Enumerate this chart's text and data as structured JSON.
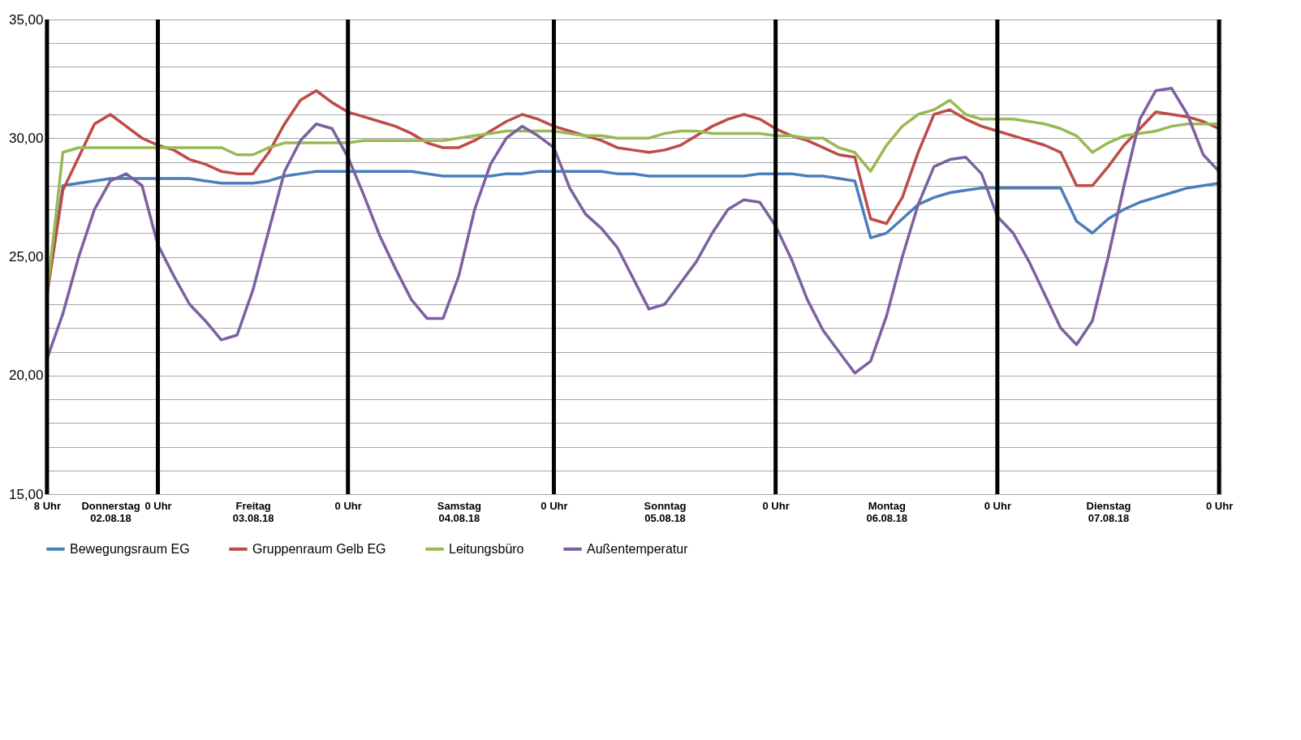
{
  "chart_data": {
    "type": "line",
    "ylim": [
      15,
      35
    ],
    "categories": [
      "8 Uhr",
      null,
      null,
      null,
      "Donnerstag\n02.08.18",
      null,
      null,
      "0 Uhr",
      null,
      null,
      null,
      null,
      null,
      "Freitag\n03.08.18",
      null,
      null,
      null,
      null,
      null,
      "0 Uhr",
      null,
      null,
      null,
      null,
      null,
      null,
      "Samstag\n04.08.18",
      null,
      null,
      null,
      null,
      null,
      "0 Uhr",
      null,
      null,
      null,
      null,
      null,
      null,
      "Sonntag\n05.08.18",
      null,
      null,
      null,
      null,
      null,
      null,
      "0 Uhr",
      null,
      null,
      null,
      null,
      null,
      null,
      "Montag\n06.08.18",
      null,
      null,
      null,
      null,
      null,
      null,
      "0 Uhr",
      null,
      null,
      null,
      null,
      null,
      null,
      "Dienstag\n07.08.18",
      null,
      null,
      null,
      null,
      null,
      null,
      "0 Uhr"
    ],
    "yticks": [
      {
        "value": 15,
        "label": "15,00"
      },
      {
        "value": 16,
        "label": null
      },
      {
        "value": 17,
        "label": null
      },
      {
        "value": 18,
        "label": null
      },
      {
        "value": 19,
        "label": null
      },
      {
        "value": 20,
        "label": "20,00"
      },
      {
        "value": 21,
        "label": null
      },
      {
        "value": 22,
        "label": null
      },
      {
        "value": 23,
        "label": null
      },
      {
        "value": 24,
        "label": null
      },
      {
        "value": 25,
        "label": "25,00"
      },
      {
        "value": 26,
        "label": null
      },
      {
        "value": 27,
        "label": null
      },
      {
        "value": 28,
        "label": null
      },
      {
        "value": 29,
        "label": null
      },
      {
        "value": 30,
        "label": "30,00"
      },
      {
        "value": 31,
        "label": null
      },
      {
        "value": 32,
        "label": null
      },
      {
        "value": 33,
        "label": null
      },
      {
        "value": 34,
        "label": null
      },
      {
        "value": 35,
        "label": "35,00"
      }
    ],
    "grid": true,
    "legend": "bottom",
    "line_style": "solid",
    "series": [
      {
        "name": "Bewegungsraum EG",
        "color": "#4a7ebb",
        "values": [
          23.4,
          28.0,
          28.1,
          28.2,
          28.3,
          28.3,
          28.3,
          28.3,
          28.3,
          28.3,
          28.2,
          28.1,
          28.1,
          28.1,
          28.2,
          28.4,
          28.5,
          28.6,
          28.6,
          28.6,
          28.6,
          28.6,
          28.6,
          28.6,
          28.5,
          28.4,
          28.4,
          28.4,
          28.4,
          28.5,
          28.5,
          28.6,
          28.6,
          28.6,
          28.6,
          28.6,
          28.5,
          28.5,
          28.4,
          28.4,
          28.4,
          28.4,
          28.4,
          28.4,
          28.4,
          28.5,
          28.5,
          28.5,
          28.4,
          28.4,
          28.3,
          28.2,
          25.8,
          26.0,
          26.6,
          27.2,
          27.5,
          27.7,
          27.8,
          27.9,
          27.9,
          27.9,
          27.9,
          27.9,
          27.9,
          26.5,
          26.0,
          26.6,
          27.0,
          27.3,
          27.5,
          27.7,
          27.9,
          28.0,
          28.1
        ]
      },
      {
        "name": "Gruppenraum Gelb EG",
        "color": "#be4b48",
        "values": [
          23.4,
          27.8,
          29.2,
          30.6,
          31.0,
          30.5,
          30.0,
          29.7,
          29.5,
          29.1,
          28.9,
          28.6,
          28.5,
          28.5,
          29.4,
          30.6,
          31.6,
          32.0,
          31.5,
          31.1,
          30.9,
          30.7,
          30.5,
          30.2,
          29.8,
          29.6,
          29.6,
          29.9,
          30.3,
          30.7,
          31.0,
          30.8,
          30.5,
          30.3,
          30.1,
          29.9,
          29.6,
          29.5,
          29.4,
          29.5,
          29.7,
          30.1,
          30.5,
          30.8,
          31.0,
          30.8,
          30.4,
          30.1,
          29.9,
          29.6,
          29.3,
          29.2,
          26.6,
          26.4,
          27.5,
          29.4,
          31.0,
          31.2,
          30.8,
          30.5,
          30.3,
          30.1,
          29.9,
          29.7,
          29.4,
          28.0,
          28.0,
          28.8,
          29.7,
          30.4,
          31.1,
          31.0,
          30.9,
          30.7,
          30.4
        ]
      },
      {
        "name": "Leitungsbüro",
        "color": "#98b954",
        "values": [
          23.4,
          29.4,
          29.6,
          29.6,
          29.6,
          29.6,
          29.6,
          29.6,
          29.6,
          29.6,
          29.6,
          29.6,
          29.3,
          29.3,
          29.6,
          29.8,
          29.8,
          29.8,
          29.8,
          29.8,
          29.9,
          29.9,
          29.9,
          29.9,
          29.9,
          29.9,
          30.0,
          30.1,
          30.2,
          30.3,
          30.3,
          30.3,
          30.3,
          30.2,
          30.1,
          30.1,
          30.0,
          30.0,
          30.0,
          30.2,
          30.3,
          30.3,
          30.2,
          30.2,
          30.2,
          30.2,
          30.1,
          30.1,
          30.0,
          30.0,
          29.6,
          29.4,
          28.6,
          29.7,
          30.5,
          31.0,
          31.2,
          31.6,
          31.0,
          30.8,
          30.8,
          30.8,
          30.7,
          30.6,
          30.4,
          30.1,
          29.4,
          29.8,
          30.1,
          30.2,
          30.3,
          30.5,
          30.6,
          30.6,
          30.6
        ]
      },
      {
        "name": "Außentemperatur",
        "color": "#7d60a0",
        "values": [
          20.7,
          22.6,
          25.0,
          27.0,
          28.2,
          28.5,
          28.0,
          25.5,
          24.2,
          23.0,
          22.3,
          21.5,
          21.7,
          23.6,
          26.1,
          28.6,
          29.9,
          30.6,
          30.4,
          29.2,
          27.6,
          25.9,
          24.5,
          23.2,
          22.4,
          22.4,
          24.2,
          27.0,
          28.9,
          30.0,
          30.5,
          30.1,
          29.6,
          27.9,
          26.8,
          26.2,
          25.4,
          24.1,
          22.8,
          23.0,
          23.9,
          24.8,
          26.0,
          27.0,
          27.4,
          27.3,
          26.3,
          24.9,
          23.2,
          21.9,
          21.0,
          20.1,
          20.6,
          22.5,
          25.0,
          27.2,
          28.8,
          29.1,
          29.2,
          28.5,
          26.7,
          26.0,
          24.8,
          23.4,
          22.0,
          21.3,
          22.3,
          25.0,
          28.0,
          30.8,
          32.0,
          32.1,
          31.0,
          29.3,
          28.6
        ]
      }
    ]
  }
}
